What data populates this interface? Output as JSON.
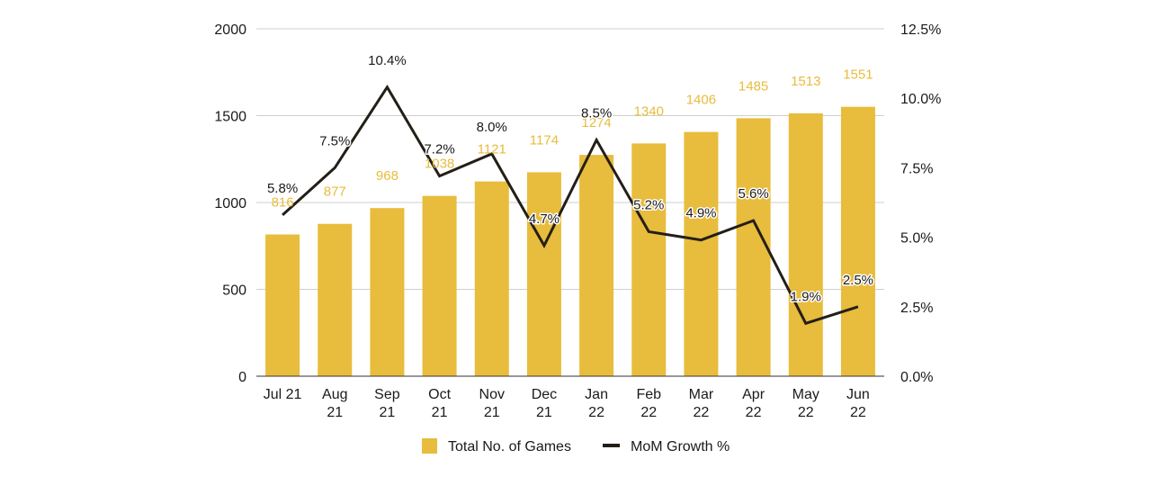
{
  "chart_data": {
    "type": "bar",
    "title": "",
    "categories": [
      [
        "Jul 21"
      ],
      [
        "Aug",
        "21"
      ],
      [
        "Sep",
        "21"
      ],
      [
        "Oct",
        "21"
      ],
      [
        "Nov",
        "21"
      ],
      [
        "Dec",
        "21"
      ],
      [
        "Jan",
        "22"
      ],
      [
        "Feb",
        "22"
      ],
      [
        "Mar",
        "22"
      ],
      [
        "Apr",
        "22"
      ],
      [
        "May",
        "22"
      ],
      [
        "Jun",
        "22"
      ]
    ],
    "series": [
      {
        "name": "Total No. of Games",
        "type": "bar",
        "axis": "left",
        "color": "#e8bc3c",
        "values": [
          816,
          877,
          968,
          1038,
          1121,
          1174,
          1274,
          1340,
          1406,
          1485,
          1513,
          1551
        ],
        "labels": [
          "816",
          "877",
          "968",
          "1038",
          "1121",
          "1174",
          "1274",
          "1340",
          "1406",
          "1485",
          "1513",
          "1551"
        ]
      },
      {
        "name": "MoM Growth %",
        "type": "line",
        "axis": "right",
        "color": "#231f17",
        "values": [
          5.8,
          7.5,
          10.4,
          7.2,
          8.0,
          4.7,
          8.5,
          5.2,
          4.9,
          5.6,
          1.9,
          2.5
        ],
        "labels": [
          "5.8%",
          "7.5%",
          "10.4%",
          "7.2%",
          "8.0%",
          "4.7%",
          "8.5%",
          "5.2%",
          "4.9%",
          "5.6%",
          "1.9%",
          "2.5%"
        ]
      }
    ],
    "y_left": {
      "range": [
        0,
        2000
      ],
      "ticks": [
        0,
        500,
        1000,
        1500,
        2000
      ],
      "tick_labels": [
        "0",
        "500",
        "1000",
        "1500",
        "2000"
      ]
    },
    "y_right": {
      "range": [
        0,
        12.5
      ],
      "ticks": [
        0,
        2.5,
        5,
        7.5,
        10,
        12.5
      ],
      "tick_labels": [
        "0.0%",
        "2.5%",
        "5.0%",
        "7.5%",
        "10.0%",
        "12.5%"
      ]
    },
    "grid": true,
    "legend_position": "bottom-center"
  }
}
